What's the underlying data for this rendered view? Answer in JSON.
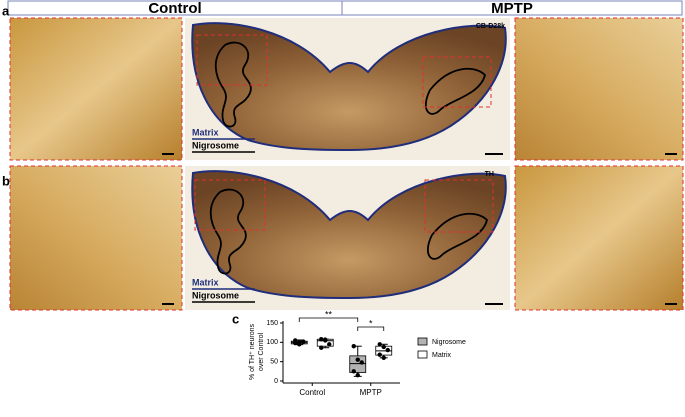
{
  "header": {
    "left": "Control",
    "right": "MPTP"
  },
  "panels": [
    {
      "letter": "a",
      "stain": "CB-D28k",
      "legend": [
        "Matrix",
        "Nigrosome"
      ]
    },
    {
      "letter": "b",
      "stain": "TH",
      "legend": [
        "Matrix",
        "Nigrosome"
      ]
    }
  ],
  "chart_data": {
    "type": "box",
    "panel_letter": "c",
    "y_label": [
      "% of TH⁺ neurons",
      "over Control"
    ],
    "categories": [
      "Control",
      "MPTP"
    ],
    "series": [
      {
        "name": "Nigrosome",
        "color": "#b3b3b3",
        "boxes": [
          {
            "min": 94,
            "q1": 96,
            "median": 100,
            "q3": 103,
            "max": 106,
            "points": [
              98,
              100,
              102,
              105,
              95
            ]
          },
          {
            "min": 12,
            "q1": 22,
            "median": 45,
            "q3": 65,
            "max": 90,
            "points": [
              90,
              55,
              48,
              25,
              15
            ]
          }
        ]
      },
      {
        "name": "Matrix",
        "color": "#ffffff",
        "boxes": [
          {
            "min": 86,
            "q1": 90,
            "median": 104,
            "q3": 108,
            "max": 108,
            "points": [
              108,
              107,
              95,
              86,
              105
            ]
          },
          {
            "min": 60,
            "q1": 67,
            "median": 78,
            "q3": 90,
            "max": 95,
            "points": [
              95,
              88,
              80,
              68,
              60
            ]
          }
        ]
      }
    ],
    "significance": [
      "**",
      "*"
    ],
    "ylim": [
      0,
      150
    ],
    "yticks": [
      0,
      50,
      100,
      150
    ]
  }
}
